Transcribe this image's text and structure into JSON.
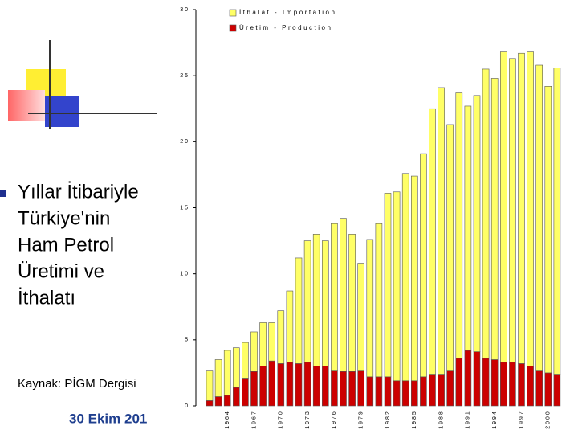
{
  "slide": {
    "heading": [
      "Yıllar İtibariyle",
      "Türkiye'nin",
      "Ham Petrol",
      "Üretimi ve",
      "İthalatı"
    ],
    "source": "Kaynak: PİGM Dergisi",
    "date": "30 Ekim 201"
  },
  "chart_data": {
    "type": "stacked-bar",
    "categories": [
      null,
      null,
      "1964",
      null,
      null,
      "1967",
      null,
      null,
      "1970",
      null,
      null,
      "1973",
      null,
      null,
      "1976",
      null,
      null,
      "1979",
      null,
      null,
      "1982",
      null,
      null,
      "1985",
      null,
      null,
      "1988",
      null,
      null,
      "1991",
      null,
      null,
      "1994",
      null,
      null,
      "1997",
      null,
      null,
      "2000",
      null
    ],
    "series": [
      {
        "name": "Üretim - Production",
        "color": "#cc0000",
        "values": [
          0.4,
          0.7,
          0.8,
          1.4,
          2.1,
          2.6,
          3.0,
          3.4,
          3.2,
          3.3,
          3.2,
          3.3,
          3.0,
          3.0,
          2.7,
          2.6,
          2.6,
          2.7,
          2.2,
          2.2,
          2.2,
          1.9,
          1.9,
          1.9,
          2.2,
          2.4,
          2.4,
          2.7,
          3.6,
          4.2,
          4.1,
          3.6,
          3.5,
          3.3,
          3.3,
          3.2,
          3.0,
          2.7,
          2.5,
          2.4
        ]
      },
      {
        "name": "İthalat - Importation",
        "color": "#ffff66",
        "values": [
          2.3,
          2.8,
          3.4,
          3.0,
          2.7,
          3.0,
          3.3,
          2.9,
          4.0,
          5.4,
          8.0,
          9.2,
          10.0,
          9.5,
          11.1,
          11.6,
          10.4,
          8.1,
          10.4,
          11.6,
          13.9,
          14.3,
          15.7,
          15.5,
          16.9,
          20.1,
          21.7,
          18.6,
          20.1,
          18.5,
          19.4,
          21.9,
          21.3,
          23.5,
          23.0,
          23.5,
          23.8,
          23.1,
          21.7,
          23.2
        ]
      }
    ],
    "ylim": [
      0,
      30
    ],
    "yticks": [
      0,
      5,
      10,
      15,
      20,
      25,
      30
    ]
  }
}
